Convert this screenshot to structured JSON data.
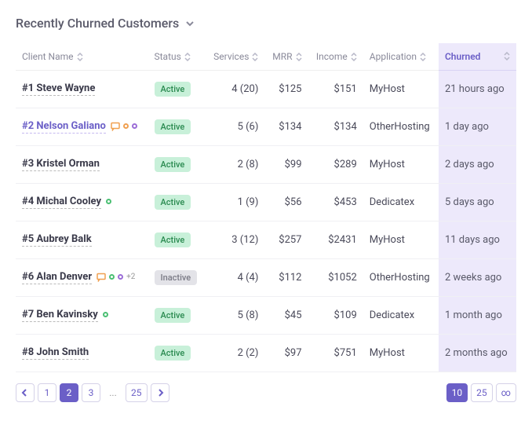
{
  "title": "Recently Churned Customers",
  "columns": {
    "client": "Client Name",
    "status": "Status",
    "services": "Services",
    "mrr": "MRR",
    "income": "Income",
    "application": "Application",
    "churned": "Churned"
  },
  "statuses": {
    "active": "Active",
    "inactive": "Inactive"
  },
  "rows": [
    {
      "name": "#1 Steve Wayne",
      "link": false,
      "badges": [],
      "status": "active",
      "services": "4 (20)",
      "mrr": "$125",
      "income": "$151",
      "application": "MyHost",
      "churned": "21 hours ago"
    },
    {
      "name": "#2 Nelson Galiano",
      "link": true,
      "badges": [
        "chat",
        "orange",
        "purple"
      ],
      "status": "active",
      "services": "5 (6)",
      "mrr": "$134",
      "income": "$134",
      "application": "OtherHosting",
      "churned": "1 day ago"
    },
    {
      "name": "#3 Kristel Orman",
      "link": false,
      "badges": [],
      "status": "active",
      "services": "2 (8)",
      "mrr": "$99",
      "income": "$289",
      "application": "MyHost",
      "churned": "2 days ago"
    },
    {
      "name": "#4 Michal Cooley",
      "link": false,
      "badges": [
        "green"
      ],
      "status": "active",
      "services": "1 (9)",
      "mrr": "$56",
      "income": "$453",
      "application": "Dedicatex",
      "churned": "5 days ago"
    },
    {
      "name": "#5 Aubrey Balk",
      "link": false,
      "badges": [],
      "status": "active",
      "services": "3 (12)",
      "mrr": "$257",
      "income": "$2431",
      "application": "MyHost",
      "churned": "11 days ago"
    },
    {
      "name": "#6 Alan Denver",
      "link": false,
      "badges": [
        "chat",
        "green",
        "purple",
        "+2"
      ],
      "status": "inactive",
      "services": "4 (4)",
      "mrr": "$112",
      "income": "$1052",
      "application": "OtherHosting",
      "churned": "2 weeks ago"
    },
    {
      "name": "#7 Ben Kavinsky",
      "link": false,
      "badges": [
        "green"
      ],
      "status": "active",
      "services": "5 (8)",
      "mrr": "$45",
      "income": "$109",
      "application": "Dedicatex",
      "churned": "1 month ago"
    },
    {
      "name": "#8 John Smith",
      "link": false,
      "badges": [],
      "status": "active",
      "services": "2 (2)",
      "mrr": "$97",
      "income": "$751",
      "application": "MyHost",
      "churned": "2 months ago"
    }
  ],
  "pagination": {
    "pages": [
      "1",
      "2",
      "3",
      "...",
      "25"
    ],
    "current": "2",
    "sizes": [
      "10",
      "25",
      "∞"
    ],
    "current_size": "10"
  },
  "colors": {
    "accent": "#6b5fc7",
    "highlight_bg": "#ede9fb",
    "active_badge_bg": "#c8f0d9",
    "active_badge_fg": "#2a8a50",
    "inactive_badge_bg": "#e3e3e8",
    "inactive_badge_fg": "#7a7a85"
  }
}
